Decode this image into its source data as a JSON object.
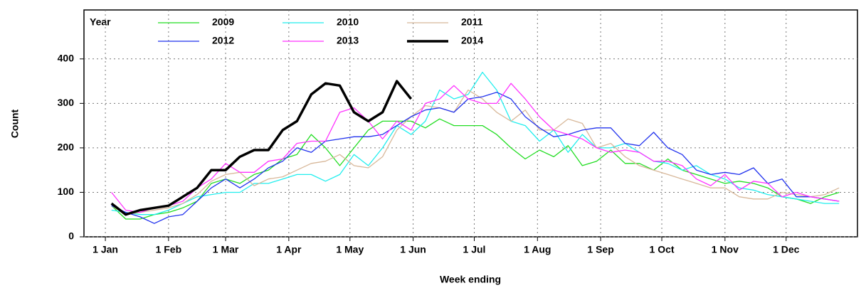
{
  "chart_data": {
    "type": "line",
    "xlabel": "Week ending",
    "ylabel": "Count",
    "legend_title": "Year",
    "x": [
      3,
      10,
      17,
      24,
      31,
      38,
      45,
      52,
      59,
      66,
      73,
      80,
      87,
      94,
      101,
      108,
      115,
      122,
      129,
      136,
      143,
      150,
      157,
      164,
      171,
      178,
      185,
      192,
      199,
      206,
      213,
      220,
      227,
      234,
      241,
      248,
      255,
      262,
      269,
      276,
      283,
      290,
      297,
      304,
      311,
      318,
      325,
      332,
      339,
      346,
      353,
      360
    ],
    "xlim": [
      -10.5,
      369
    ],
    "ylim": [
      0,
      510
    ],
    "xticks": [
      {
        "value": 0,
        "label": "1 Jan"
      },
      {
        "value": 31,
        "label": "1 Feb"
      },
      {
        "value": 59,
        "label": "1 Mar"
      },
      {
        "value": 90,
        "label": "1 Apr"
      },
      {
        "value": 120,
        "label": "1 May"
      },
      {
        "value": 151,
        "label": "1 Jun"
      },
      {
        "value": 181,
        "label": "1 Jul"
      },
      {
        "value": 212,
        "label": "1 Aug"
      },
      {
        "value": 243,
        "label": "1 Sep"
      },
      {
        "value": 273,
        "label": "1 Oct"
      },
      {
        "value": 304,
        "label": "1 Nov"
      },
      {
        "value": 334,
        "label": "1 Dec"
      }
    ],
    "yticks": [
      0,
      100,
      200,
      300,
      400
    ],
    "grid": true,
    "series": [
      {
        "name": "2009",
        "color": "#22dd22",
        "line_width": 1.3,
        "values": [
          70,
          40,
          40,
          50,
          55,
          65,
          80,
          120,
          130,
          120,
          140,
          150,
          175,
          185,
          230,
          200,
          160,
          200,
          240,
          260,
          260,
          260,
          245,
          265,
          250,
          250,
          250,
          230,
          200,
          175,
          195,
          180,
          205,
          160,
          170,
          195,
          165,
          165,
          150,
          175,
          150,
          140,
          130,
          120,
          125,
          120,
          110,
          90,
          85,
          75,
          90,
          100
        ]
      },
      {
        "name": "2010",
        "color": "#22eeee",
        "line_width": 1.3,
        "values": [
          60,
          55,
          50,
          50,
          60,
          75,
          90,
          95,
          100,
          100,
          120,
          120,
          130,
          140,
          140,
          125,
          140,
          185,
          160,
          200,
          250,
          230,
          260,
          330,
          310,
          320,
          370,
          330,
          260,
          250,
          215,
          240,
          190,
          230,
          200,
          200,
          210,
          190,
          170,
          165,
          150,
          160,
          140,
          130,
          110,
          105,
          95,
          90,
          85,
          80,
          75,
          75
        ]
      },
      {
        "name": "2011",
        "color": "#d8b89a",
        "line_width": 1.3,
        "values": [
          70,
          50,
          55,
          60,
          65,
          75,
          95,
          125,
          140,
          145,
          115,
          130,
          135,
          150,
          165,
          170,
          185,
          160,
          155,
          180,
          240,
          270,
          295,
          290,
          280,
          330,
          310,
          280,
          260,
          285,
          240,
          240,
          265,
          255,
          200,
          210,
          180,
          160,
          150,
          140,
          130,
          120,
          110,
          110,
          90,
          85,
          85,
          100,
          95,
          90,
          95,
          110
        ]
      },
      {
        "name": "2012",
        "color": "#2233ee",
        "line_width": 1.3,
        "values": [
          70,
          55,
          45,
          30,
          45,
          50,
          80,
          110,
          130,
          110,
          130,
          155,
          170,
          200,
          190,
          215,
          220,
          225,
          225,
          230,
          250,
          270,
          285,
          290,
          280,
          310,
          315,
          325,
          310,
          270,
          245,
          225,
          230,
          240,
          245,
          245,
          210,
          205,
          235,
          200,
          185,
          150,
          140,
          145,
          140,
          155,
          120,
          130,
          90,
          90,
          85,
          80
        ]
      },
      {
        "name": "2013",
        "color": "#ff33ff",
        "line_width": 1.3,
        "values": [
          100,
          60,
          55,
          65,
          70,
          80,
          110,
          130,
          165,
          145,
          145,
          170,
          175,
          210,
          215,
          215,
          280,
          290,
          260,
          220,
          260,
          240,
          300,
          310,
          340,
          310,
          300,
          300,
          345,
          310,
          270,
          240,
          230,
          220,
          200,
          190,
          195,
          190,
          170,
          170,
          160,
          130,
          115,
          140,
          105,
          125,
          120,
          90,
          100,
          90,
          85,
          80
        ]
      },
      {
        "name": "2014",
        "color": "#000000",
        "line_width": 3.5,
        "values": [
          75,
          50,
          60,
          65,
          70,
          90,
          110,
          150,
          150,
          180,
          195,
          195,
          240,
          260,
          320,
          345,
          340,
          280,
          260,
          280,
          350,
          310,
          null,
          null,
          null,
          null,
          null,
          null,
          null,
          null,
          null,
          null,
          null,
          null,
          null,
          null,
          null,
          null,
          null,
          null,
          null,
          null,
          null,
          null,
          null,
          null,
          null,
          null,
          null,
          null,
          null,
          null
        ]
      }
    ]
  }
}
